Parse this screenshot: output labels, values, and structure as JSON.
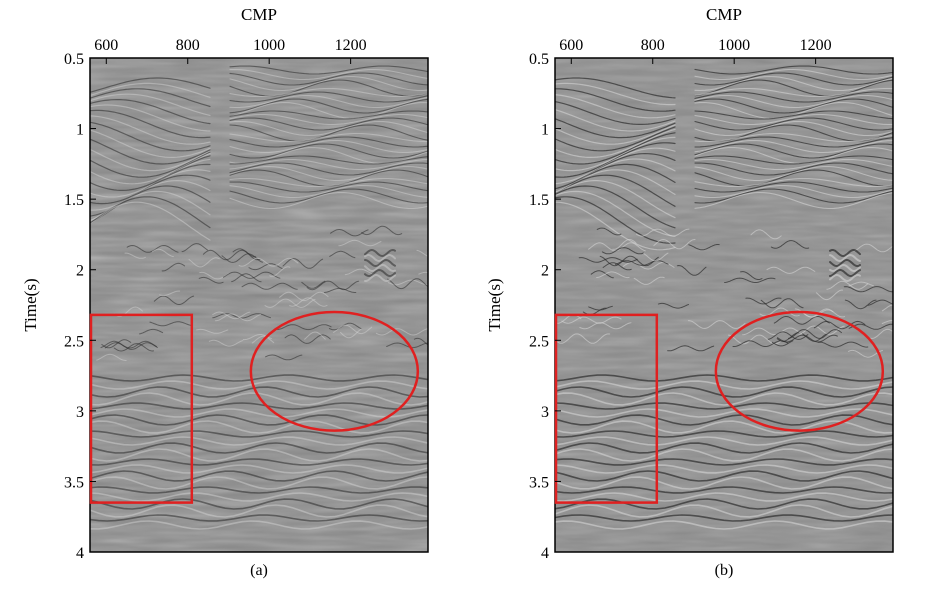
{
  "chart_data": [
    {
      "type": "heatmap",
      "panel_label": "(a)",
      "xlabel": "CMP",
      "ylabel": "Time(s)",
      "x_ticks": [
        600,
        800,
        1000,
        1200
      ],
      "y_ticks": [
        0.5,
        1,
        1.5,
        2,
        2.5,
        3,
        3.5,
        4
      ],
      "y_tick_labels": [
        "0.5",
        "1",
        "1.5",
        "2",
        "2.5",
        "3",
        "3.5",
        "4"
      ],
      "xlim": [
        560,
        1390
      ],
      "ylim": [
        0.5,
        4
      ],
      "y_inverted": true,
      "x_axis_position": "top",
      "colormap": "grayscale seismic amplitude",
      "annotations": [
        {
          "shape": "rectangle",
          "color": "#e02020",
          "x_range": [
            560,
            810
          ],
          "y_range": [
            2.32,
            3.65
          ]
        },
        {
          "shape": "ellipse",
          "color": "#e02020",
          "center": [
            1160,
            2.72
          ],
          "x_radius": 205,
          "y_radius": 0.42
        }
      ]
    },
    {
      "type": "heatmap",
      "panel_label": "(b)",
      "xlabel": "CMP",
      "ylabel": "Time(s)",
      "x_ticks": [
        600,
        800,
        1000,
        1200
      ],
      "y_ticks": [
        0.5,
        1,
        1.5,
        2,
        2.5,
        3,
        3.5,
        4
      ],
      "y_tick_labels": [
        "0.5",
        "1",
        "1.5",
        "2",
        "2.5",
        "3",
        "3.5",
        "4"
      ],
      "xlim": [
        560,
        1390
      ],
      "ylim": [
        0.5,
        4
      ],
      "y_inverted": true,
      "x_axis_position": "top",
      "colormap": "grayscale seismic amplitude",
      "annotations": [
        {
          "shape": "rectangle",
          "color": "#e02020",
          "x_range": [
            560,
            810
          ],
          "y_range": [
            2.32,
            3.65
          ]
        },
        {
          "shape": "ellipse",
          "color": "#e02020",
          "center": [
            1160,
            2.72
          ],
          "x_radius": 205,
          "y_radius": 0.42
        }
      ]
    }
  ]
}
